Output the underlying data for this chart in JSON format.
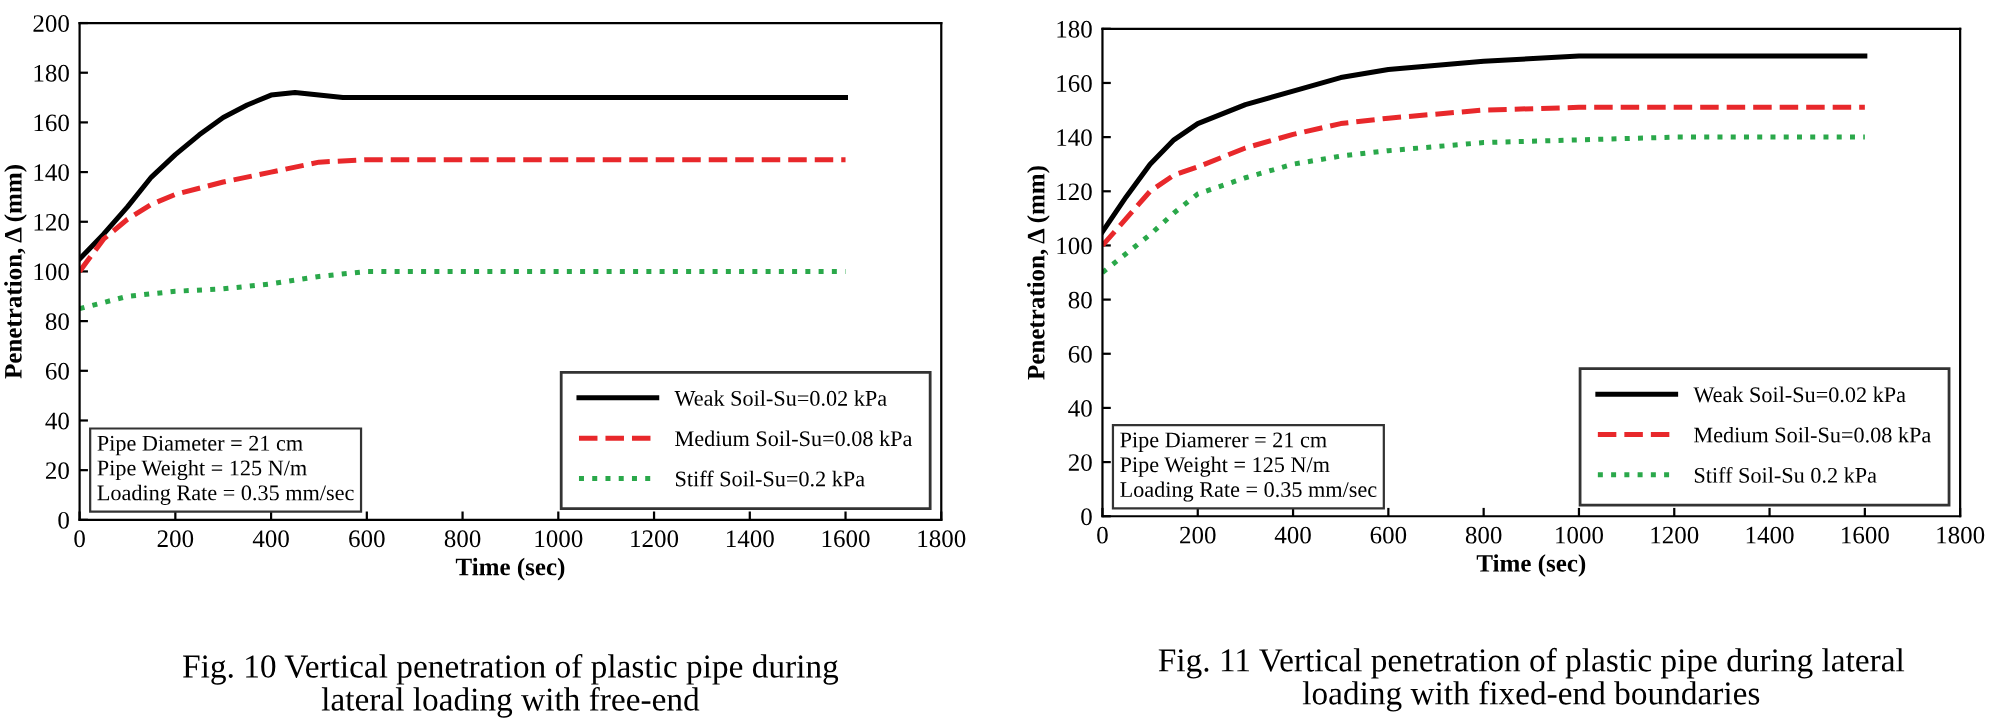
{
  "chart_data": [
    {
      "type": "line",
      "xlabel": "Time (sec)",
      "ylabel": "Penetration, Δ (mm)",
      "xlim": [
        0,
        1800
      ],
      "xticks": [
        0,
        200,
        400,
        600,
        800,
        1000,
        1200,
        1400,
        1600,
        1800
      ],
      "ylim": [
        0,
        200
      ],
      "yticks": [
        0,
        20,
        40,
        60,
        80,
        100,
        120,
        140,
        160,
        180,
        200
      ],
      "grid": false,
      "legend": "bottom right",
      "marker": "none",
      "annotations": [
        "Pipe Diameter = 21 cm\nPipe Weight = 125 N/m\nLoading Rate = 0.35 mm/sec",
        "Fig. 10 Vertical penetration of plastic pipe during\nlateral loading with free-end"
      ],
      "series": [
        {
          "name": "Weak Soil-Su=0.02 kPa",
          "color": "#000000",
          "line_style": "solid",
          "x": [
            0,
            50,
            100,
            150,
            200,
            250,
            300,
            350,
            400,
            450,
            500,
            550,
            600,
            1600
          ],
          "values": [
            105,
            115,
            126,
            138,
            147,
            155,
            162,
            167,
            171,
            172,
            171,
            170,
            170,
            170
          ]
        },
        {
          "name": "Medium Soil-Su=0.08 kPa",
          "color": "#e8282b",
          "line_style": "dashed",
          "x": [
            0,
            50,
            100,
            150,
            200,
            300,
            400,
            500,
            600,
            800,
            1600
          ],
          "values": [
            100,
            113,
            121,
            127,
            131,
            136,
            140,
            144,
            145,
            145,
            145
          ]
        },
        {
          "name": "Stiff Soil-Su=0.2 kPa",
          "color": "#2aa84a",
          "line_style": "dotted",
          "x": [
            0,
            100,
            200,
            300,
            400,
            500,
            600,
            1600
          ],
          "values": [
            85,
            90,
            92,
            93,
            95,
            98,
            100,
            100
          ]
        }
      ]
    },
    {
      "type": "line",
      "xlabel": "Time (sec)",
      "ylabel": "Penetration, Δ (mm)",
      "xlim": [
        0,
        1800
      ],
      "xticks": [
        0,
        200,
        400,
        600,
        800,
        1000,
        1200,
        1400,
        1600,
        1800
      ],
      "ylim": [
        0,
        180
      ],
      "yticks": [
        0,
        20,
        40,
        60,
        80,
        100,
        120,
        140,
        160,
        180
      ],
      "grid": false,
      "legend": "bottom right",
      "marker": "none",
      "annotations": [
        "Pipe Diamerer = 21 cm\nPipe Weight = 125 N/m\nLoading Rate = 0.35 mm/sec",
        "Fig. 11 Vertical penetration of plastic pipe during lateral\nloading with fixed-end boundaries"
      ],
      "series": [
        {
          "name": "Weak Soil-Su=0.02 kPa",
          "color": "#000000",
          "line_style": "solid",
          "x": [
            0,
            50,
            100,
            150,
            200,
            300,
            400,
            500,
            600,
            800,
            1000,
            1200,
            1600
          ],
          "values": [
            105,
            118,
            130,
            139,
            145,
            152,
            157,
            162,
            165,
            168,
            170,
            170,
            170
          ]
        },
        {
          "name": "Medium Soil-Su=0.08 kPa",
          "color": "#e8282b",
          "line_style": "dashed",
          "x": [
            0,
            50,
            100,
            150,
            200,
            300,
            400,
            500,
            600,
            800,
            1000,
            1200,
            1600
          ],
          "values": [
            100,
            110,
            120,
            126,
            129,
            136,
            141,
            145,
            147,
            150,
            151,
            151,
            151
          ]
        },
        {
          "name": "Stiff Soil-Su 0.2 kPa",
          "color": "#2aa84a",
          "line_style": "dotted",
          "x": [
            0,
            50,
            100,
            150,
            200,
            300,
            400,
            500,
            600,
            800,
            1000,
            1200,
            1600
          ],
          "values": [
            90,
            97,
            104,
            112,
            119,
            125,
            130,
            133,
            135,
            138,
            139,
            140,
            140
          ]
        }
      ]
    }
  ]
}
